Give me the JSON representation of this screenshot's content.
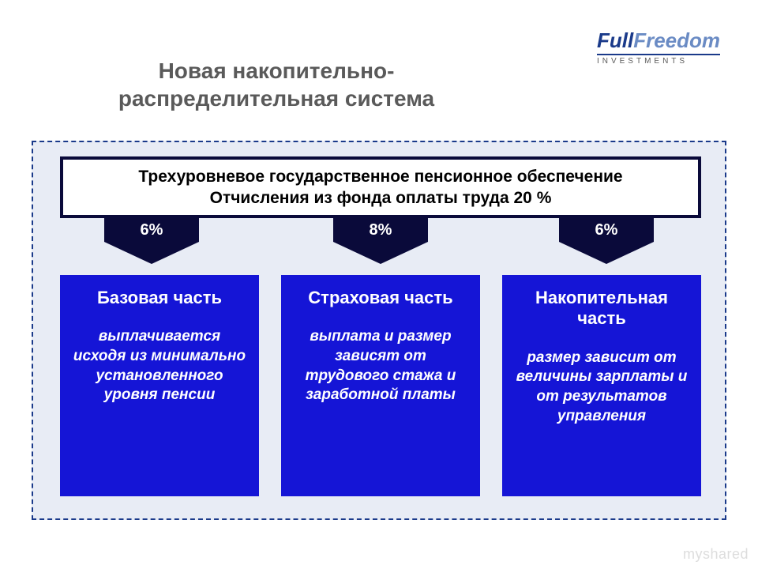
{
  "logo": {
    "word1": "Full",
    "word2": "Freedom",
    "sub": "INVESTMENTS",
    "color_word1": "#1a3a8a",
    "color_word2": "#6a8bc4",
    "fontsize_main": 26,
    "fontsize_sub": 10
  },
  "title": {
    "text": "Новая накопительно-\nраспределительная система",
    "line1": "Новая накопительно-",
    "line2": "распределительная система",
    "color": "#5a5a5a",
    "fontsize": 28,
    "fontweight": 700
  },
  "frame": {
    "border_color": "#1a3a8a",
    "border_style": "dashed",
    "background": "#e8ecf5"
  },
  "banner": {
    "line1": "Трехуровневое государственное пенсионное обеспечение",
    "line2": "Отчисления из фонда оплаты труда  20 %",
    "background": "#ffffff",
    "border_color": "#0a0a3a",
    "text_color": "#000000",
    "fontsize": 21,
    "fontweight": 700
  },
  "arrows": {
    "color": "#0a0a3a",
    "text_color": "#ffffff",
    "fontsize": 20,
    "values": [
      "6%",
      "8%",
      "6%"
    ]
  },
  "boxes": {
    "background": "#1515d6",
    "text_color": "#ffffff",
    "title_fontsize": 22,
    "desc_fontsize": 19,
    "items": [
      {
        "title": "Базовая часть",
        "desc": "выплачивается исходя из минимально установленного уровня пенсии"
      },
      {
        "title": "Страховая часть",
        "desc": "выплата и размер зависят от трудового стажа и заработной платы"
      },
      {
        "title": "Накопительная часть",
        "desc": "размер зависит от величины зарплаты и от результатов управления"
      }
    ]
  },
  "watermark": "myshared"
}
